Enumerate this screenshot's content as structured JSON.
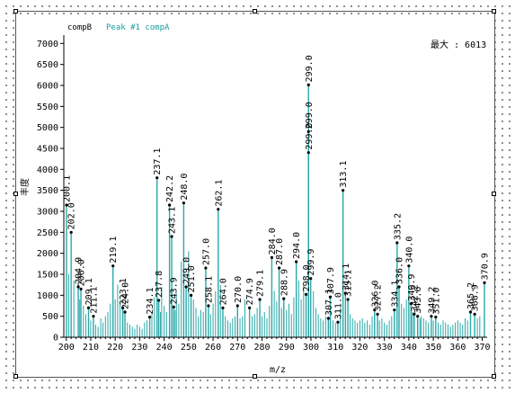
{
  "colors": {
    "series": "#2aa8a8",
    "axis": "#000000",
    "legend_peak": "#1a9c9c"
  },
  "legend": {
    "series_a": "compB",
    "series_b": "Peak #1 compA"
  },
  "max_label": "最大 : 6013",
  "chart_data": {
    "type": "bar",
    "xlabel": "m/z",
    "ylabel": "丰度",
    "xlim": [
      199,
      372
    ],
    "ylim": [
      0,
      7200
    ],
    "xticks": [
      200,
      210,
      220,
      230,
      240,
      250,
      260,
      270,
      280,
      290,
      300,
      310,
      320,
      330,
      340,
      350,
      360,
      370
    ],
    "yticks": [
      0,
      500,
      1000,
      1500,
      2000,
      2500,
      3000,
      3500,
      4000,
      4500,
      5000,
      5500,
      6000,
      6500,
      7000
    ],
    "peaks": [
      {
        "x": 200.1,
        "y": 3150,
        "label": "200.1"
      },
      {
        "x": 202.0,
        "y": 2500,
        "label": "202.0"
      },
      {
        "x": 204.9,
        "y": 1200,
        "label": "204.9"
      },
      {
        "x": 206.0,
        "y": 1150,
        "label": "206.0"
      },
      {
        "x": 209.1,
        "y": 700,
        "label": "209.1"
      },
      {
        "x": 211.1,
        "y": 500,
        "label": "211.1"
      },
      {
        "x": 219.1,
        "y": 1700,
        "label": "219.1"
      },
      {
        "x": 223.1,
        "y": 700,
        "label": "223.1"
      },
      {
        "x": 224.0,
        "y": 600,
        "label": "224.0"
      },
      {
        "x": 234.1,
        "y": 480,
        "label": "234.1"
      },
      {
        "x": 237.1,
        "y": 3800,
        "label": "237.1"
      },
      {
        "x": 237.8,
        "y": 880,
        "label": "237.8"
      },
      {
        "x": 242.2,
        "y": 3150,
        "label": "242.2"
      },
      {
        "x": 243.1,
        "y": 2400,
        "label": "243.1"
      },
      {
        "x": 243.9,
        "y": 720,
        "label": "243.9"
      },
      {
        "x": 248.0,
        "y": 3200,
        "label": "248.0"
      },
      {
        "x": 249.0,
        "y": 1200,
        "label": "249.0"
      },
      {
        "x": 251.0,
        "y": 1000,
        "label": "251.0"
      },
      {
        "x": 257.0,
        "y": 1650,
        "label": "257.0"
      },
      {
        "x": 258.1,
        "y": 750,
        "label": "258.1"
      },
      {
        "x": 262.1,
        "y": 3050,
        "label": "262.1"
      },
      {
        "x": 264.0,
        "y": 700,
        "label": "264.0"
      },
      {
        "x": 270.0,
        "y": 750,
        "label": "270.0"
      },
      {
        "x": 274.9,
        "y": 700,
        "label": "274.9"
      },
      {
        "x": 279.1,
        "y": 900,
        "label": "279.1"
      },
      {
        "x": 284.0,
        "y": 1900,
        "label": "284.0"
      },
      {
        "x": 287.0,
        "y": 1650,
        "label": "287.0"
      },
      {
        "x": 288.9,
        "y": 920,
        "label": "288.9"
      },
      {
        "x": 294.0,
        "y": 1800,
        "label": "294.0"
      },
      {
        "x": 298.0,
        "y": 1020,
        "label": "298.0"
      },
      {
        "x": 299.0,
        "y": 6013,
        "label": "299.0"
      },
      {
        "x": 299.0,
        "y": 4400,
        "label": "299.0"
      },
      {
        "x": 299.0,
        "y": 4900,
        "label": "299.0"
      },
      {
        "x": 299.9,
        "y": 1400,
        "label": "299.9"
      },
      {
        "x": 307.1,
        "y": 450,
        "label": "307.1"
      },
      {
        "x": 307.9,
        "y": 960,
        "label": "307.9"
      },
      {
        "x": 311.0,
        "y": 360,
        "label": "311.0"
      },
      {
        "x": 313.1,
        "y": 3500,
        "label": "313.1"
      },
      {
        "x": 314.1,
        "y": 1050,
        "label": "314.1"
      },
      {
        "x": 315.1,
        "y": 900,
        "label": "315.1"
      },
      {
        "x": 326.0,
        "y": 650,
        "label": "326.0"
      },
      {
        "x": 327.2,
        "y": 550,
        "label": "327.2"
      },
      {
        "x": 334.1,
        "y": 650,
        "label": "334.1"
      },
      {
        "x": 335.2,
        "y": 2250,
        "label": "335.2"
      },
      {
        "x": 336.0,
        "y": 1200,
        "label": "336.0"
      },
      {
        "x": 340.0,
        "y": 1700,
        "label": "340.0"
      },
      {
        "x": 340.9,
        "y": 800,
        "label": "340.9"
      },
      {
        "x": 342.2,
        "y": 550,
        "label": "342.2"
      },
      {
        "x": 343.6,
        "y": 500,
        "label": "343.6"
      },
      {
        "x": 349.2,
        "y": 500,
        "label": "349.2"
      },
      {
        "x": 351.0,
        "y": 480,
        "label": "351.0"
      },
      {
        "x": 365.2,
        "y": 600,
        "label": "365.2"
      },
      {
        "x": 366.9,
        "y": 550,
        "label": "366.9"
      },
      {
        "x": 370.9,
        "y": 1300,
        "label": "370.9"
      }
    ],
    "minor_peaks": [
      {
        "x": 201.0,
        "y": 1500
      },
      {
        "x": 203.1,
        "y": 1350
      },
      {
        "x": 205.5,
        "y": 900
      },
      {
        "x": 207.0,
        "y": 750
      },
      {
        "x": 208.0,
        "y": 550
      },
      {
        "x": 210.0,
        "y": 400
      },
      {
        "x": 212.0,
        "y": 300
      },
      {
        "x": 213.0,
        "y": 250
      },
      {
        "x": 214.1,
        "y": 450
      },
      {
        "x": 215.0,
        "y": 350
      },
      {
        "x": 216.0,
        "y": 500
      },
      {
        "x": 217.0,
        "y": 600
      },
      {
        "x": 218.0,
        "y": 800
      },
      {
        "x": 220.0,
        "y": 900
      },
      {
        "x": 221.0,
        "y": 1250
      },
      {
        "x": 222.0,
        "y": 850
      },
      {
        "x": 225.0,
        "y": 350
      },
      {
        "x": 226.0,
        "y": 300
      },
      {
        "x": 227.0,
        "y": 250
      },
      {
        "x": 228.0,
        "y": 200
      },
      {
        "x": 229.0,
        "y": 300
      },
      {
        "x": 230.0,
        "y": 250
      },
      {
        "x": 231.0,
        "y": 200
      },
      {
        "x": 232.0,
        "y": 350
      },
      {
        "x": 233.0,
        "y": 400
      },
      {
        "x": 235.0,
        "y": 600
      },
      {
        "x": 236.0,
        "y": 950
      },
      {
        "x": 238.5,
        "y": 600
      },
      {
        "x": 239.0,
        "y": 1200
      },
      {
        "x": 240.0,
        "y": 750
      },
      {
        "x": 241.0,
        "y": 600
      },
      {
        "x": 244.5,
        "y": 650
      },
      {
        "x": 245.0,
        "y": 1050
      },
      {
        "x": 246.0,
        "y": 800
      },
      {
        "x": 247.0,
        "y": 1800
      },
      {
        "x": 250.0,
        "y": 2050
      },
      {
        "x": 252.0,
        "y": 900
      },
      {
        "x": 253.0,
        "y": 700
      },
      {
        "x": 254.0,
        "y": 500
      },
      {
        "x": 255.0,
        "y": 650
      },
      {
        "x": 256.0,
        "y": 600
      },
      {
        "x": 259.0,
        "y": 550
      },
      {
        "x": 260.0,
        "y": 800
      },
      {
        "x": 261.0,
        "y": 1100
      },
      {
        "x": 263.0,
        "y": 1250
      },
      {
        "x": 265.0,
        "y": 500
      },
      {
        "x": 266.0,
        "y": 400
      },
      {
        "x": 267.0,
        "y": 350
      },
      {
        "x": 268.0,
        "y": 450
      },
      {
        "x": 269.0,
        "y": 500
      },
      {
        "x": 271.0,
        "y": 450
      },
      {
        "x": 272.0,
        "y": 500
      },
      {
        "x": 273.0,
        "y": 900
      },
      {
        "x": 276.0,
        "y": 500
      },
      {
        "x": 277.0,
        "y": 550
      },
      {
        "x": 278.0,
        "y": 700
      },
      {
        "x": 280.0,
        "y": 500
      },
      {
        "x": 281.0,
        "y": 600
      },
      {
        "x": 282.0,
        "y": 450
      },
      {
        "x": 283.0,
        "y": 750
      },
      {
        "x": 285.0,
        "y": 1100
      },
      {
        "x": 286.0,
        "y": 850
      },
      {
        "x": 288.0,
        "y": 700
      },
      {
        "x": 290.0,
        "y": 650
      },
      {
        "x": 291.0,
        "y": 800
      },
      {
        "x": 292.0,
        "y": 550
      },
      {
        "x": 293.0,
        "y": 950
      },
      {
        "x": 295.0,
        "y": 1350
      },
      {
        "x": 296.0,
        "y": 900
      },
      {
        "x": 297.0,
        "y": 1250
      },
      {
        "x": 301.0,
        "y": 1100
      },
      {
        "x": 302.0,
        "y": 700
      },
      {
        "x": 303.0,
        "y": 550
      },
      {
        "x": 304.0,
        "y": 450
      },
      {
        "x": 305.0,
        "y": 400
      },
      {
        "x": 306.0,
        "y": 500
      },
      {
        "x": 309.0,
        "y": 400
      },
      {
        "x": 310.0,
        "y": 350
      },
      {
        "x": 312.0,
        "y": 700
      },
      {
        "x": 316.0,
        "y": 550
      },
      {
        "x": 317.0,
        "y": 450
      },
      {
        "x": 318.0,
        "y": 400
      },
      {
        "x": 319.0,
        "y": 350
      },
      {
        "x": 320.0,
        "y": 400
      },
      {
        "x": 321.0,
        "y": 450
      },
      {
        "x": 322.0,
        "y": 350
      },
      {
        "x": 323.0,
        "y": 400
      },
      {
        "x": 324.0,
        "y": 300
      },
      {
        "x": 325.0,
        "y": 500
      },
      {
        "x": 328.0,
        "y": 400
      },
      {
        "x": 329.0,
        "y": 450
      },
      {
        "x": 330.0,
        "y": 350
      },
      {
        "x": 331.0,
        "y": 300
      },
      {
        "x": 332.0,
        "y": 400
      },
      {
        "x": 333.0,
        "y": 500
      },
      {
        "x": 337.0,
        "y": 800
      },
      {
        "x": 338.0,
        "y": 700
      },
      {
        "x": 339.0,
        "y": 900
      },
      {
        "x": 341.5,
        "y": 600
      },
      {
        "x": 344.5,
        "y": 450
      },
      {
        "x": 345.0,
        "y": 500
      },
      {
        "x": 346.0,
        "y": 450
      },
      {
        "x": 347.0,
        "y": 400
      },
      {
        "x": 348.0,
        "y": 350
      },
      {
        "x": 350.0,
        "y": 400
      },
      {
        "x": 352.0,
        "y": 350
      },
      {
        "x": 353.0,
        "y": 300
      },
      {
        "x": 354.0,
        "y": 400
      },
      {
        "x": 355.0,
        "y": 350
      },
      {
        "x": 356.0,
        "y": 300
      },
      {
        "x": 357.0,
        "y": 250
      },
      {
        "x": 358.0,
        "y": 300
      },
      {
        "x": 359.0,
        "y": 350
      },
      {
        "x": 360.0,
        "y": 400
      },
      {
        "x": 361.0,
        "y": 350
      },
      {
        "x": 362.0,
        "y": 300
      },
      {
        "x": 363.0,
        "y": 450
      },
      {
        "x": 364.0,
        "y": 400
      },
      {
        "x": 368.0,
        "y": 450
      },
      {
        "x": 369.0,
        "y": 500
      }
    ]
  }
}
